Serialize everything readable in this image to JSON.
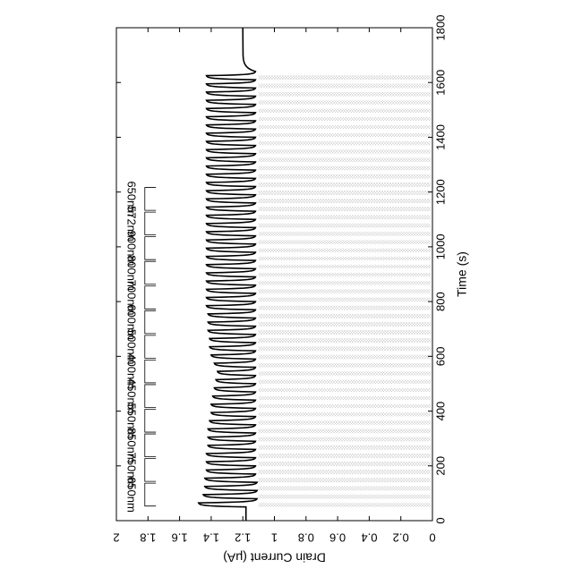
{
  "chart_data": {
    "type": "line",
    "orientation": "rotated-90-clockwise",
    "xlabel": "Time (s)",
    "ylabel": "Drain Current (μA)",
    "xlim": [
      0,
      1800
    ],
    "ylim": [
      0,
      2
    ],
    "x_ticks": [
      0,
      200,
      400,
      600,
      800,
      1000,
      1200,
      1400,
      1600,
      1800
    ],
    "y_ticks": [
      0,
      0.2,
      0.4,
      0.6,
      0.8,
      1.0,
      1.2,
      1.4,
      1.6,
      1.8,
      2.0
    ],
    "x_tick_labels": [
      "0",
      "200",
      "400",
      "600",
      "800",
      "1000",
      "1200",
      "1400",
      "1600",
      "1800"
    ],
    "y_tick_labels": [
      "0",
      "0.2",
      "0.4",
      "0.6",
      "0.8",
      "1",
      "1.2",
      "1.4",
      "1.6",
      "1.8",
      "2"
    ],
    "illumination": {
      "start": 50,
      "end": 1630,
      "pulse_period": 30,
      "pulse_on": 15,
      "group_span": 90,
      "shading_to_current": 1.1
    },
    "wavelength_groups": [
      {
        "label": "650nm",
        "start": 50,
        "end": 140
      },
      {
        "label": "750nm",
        "start": 140,
        "end": 230
      },
      {
        "label": "850nm",
        "start": 230,
        "end": 320
      },
      {
        "label": "550nm",
        "start": 320,
        "end": 410
      },
      {
        "label": "450nm",
        "start": 410,
        "end": 500
      },
      {
        "label": "400nm",
        "start": 500,
        "end": 590
      },
      {
        "label": "500nm",
        "start": 590,
        "end": 680
      },
      {
        "label": "600nm",
        "start": 680,
        "end": 770
      },
      {
        "label": "700nm",
        "start": 770,
        "end": 860
      },
      {
        "label": "800nm",
        "start": 860,
        "end": 950
      },
      {
        "label": "900nm",
        "start": 950,
        "end": 1040
      },
      {
        "label": "572nm",
        "start": 1040,
        "end": 1130
      },
      {
        "label": "650nm",
        "start": 1130,
        "end": 1220
      }
    ],
    "series": [
      {
        "baseline_current": 1.18,
        "peak_currents": [
          1.48,
          1.45,
          1.44,
          1.44,
          1.43,
          1.43,
          1.43,
          1.42,
          1.42,
          1.42,
          1.41,
          1.4,
          1.4,
          1.39,
          1.38,
          1.37,
          1.36,
          1.38,
          1.4,
          1.41,
          1.41,
          1.42,
          1.42,
          1.42,
          1.43,
          1.43,
          1.43,
          1.43,
          1.43,
          1.43,
          1.43,
          1.43,
          1.43,
          1.43,
          1.43,
          1.43,
          1.43,
          1.43,
          1.43,
          1.43,
          1.43,
          1.43,
          1.43,
          1.43,
          1.43,
          1.43,
          1.43,
          1.43,
          1.43,
          1.43,
          1.43,
          1.43,
          1.43
        ],
        "trough_currents": [
          1.11,
          1.11,
          1.11,
          1.12,
          1.12,
          1.12,
          1.12,
          1.12,
          1.12,
          1.12,
          1.12,
          1.12,
          1.12,
          1.12,
          1.12,
          1.12,
          1.12,
          1.12,
          1.12,
          1.12,
          1.12,
          1.12,
          1.12,
          1.12,
          1.12,
          1.12,
          1.12,
          1.12,
          1.12,
          1.12,
          1.12,
          1.12,
          1.12,
          1.12,
          1.12,
          1.12,
          1.12,
          1.12,
          1.12,
          1.12,
          1.12,
          1.12,
          1.12,
          1.12,
          1.12,
          1.12,
          1.12,
          1.12,
          1.12,
          1.12,
          1.12,
          1.12,
          1.12
        ],
        "final_current": 1.2
      }
    ]
  }
}
